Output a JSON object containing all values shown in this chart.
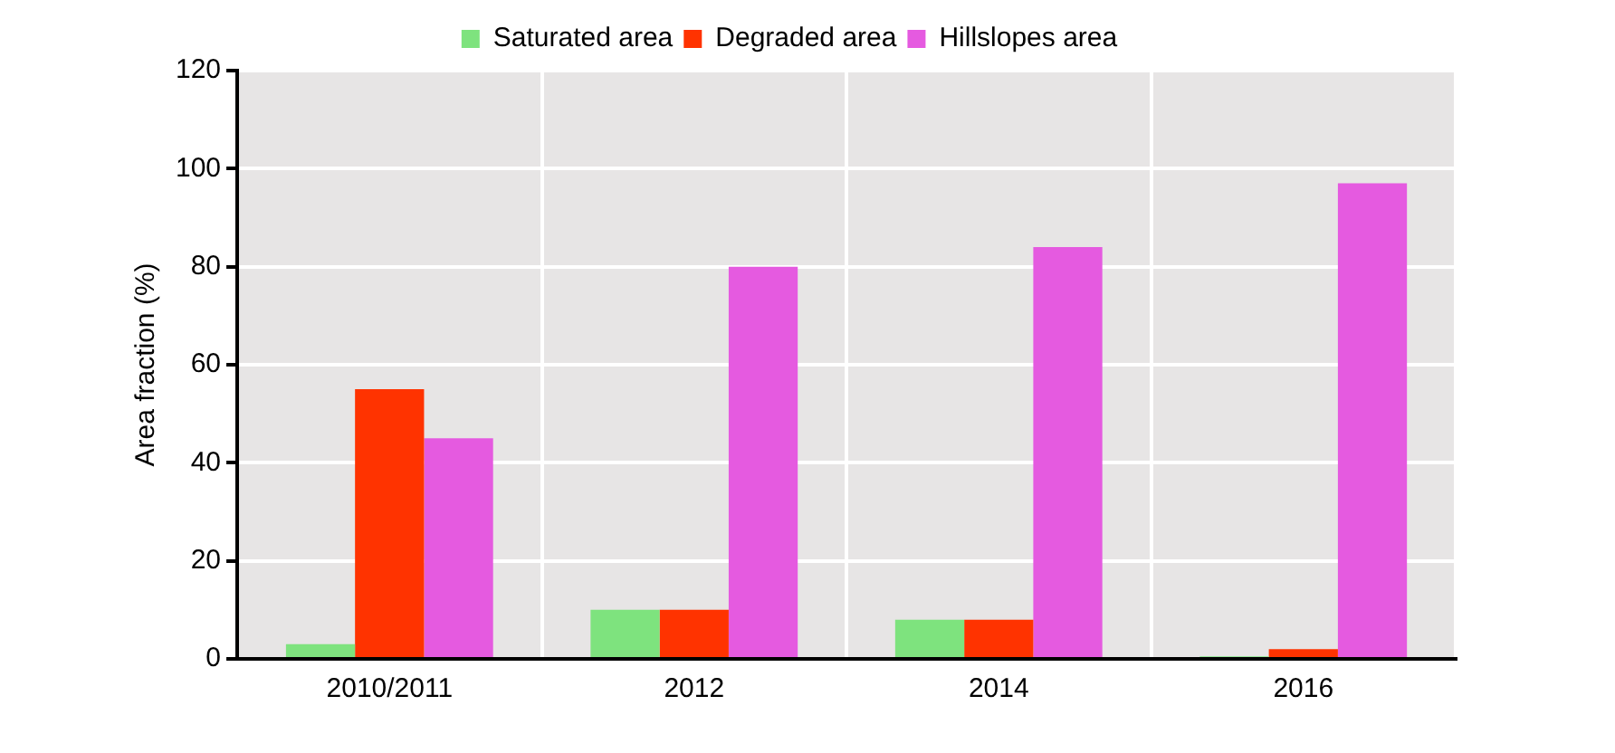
{
  "chart_data": {
    "type": "bar",
    "ylabel": "Area fraction (%)",
    "categories": [
      "2010/2011",
      "2012",
      "2014",
      "2016"
    ],
    "series": [
      {
        "name": "Saturated area",
        "color": "#7ee37e",
        "values": [
          3,
          10,
          8,
          0.5
        ]
      },
      {
        "name": "Degraded area",
        "color": "#ff3300",
        "values": [
          55,
          10,
          8,
          2
        ]
      },
      {
        "name": "Hillslopes area",
        "color": "#e55ae0",
        "values": [
          45,
          80,
          84,
          97
        ]
      }
    ],
    "ylim": [
      0,
      120
    ],
    "yticks": [
      0,
      20,
      40,
      60,
      80,
      100,
      120
    ],
    "grid": true,
    "legend": "top"
  }
}
